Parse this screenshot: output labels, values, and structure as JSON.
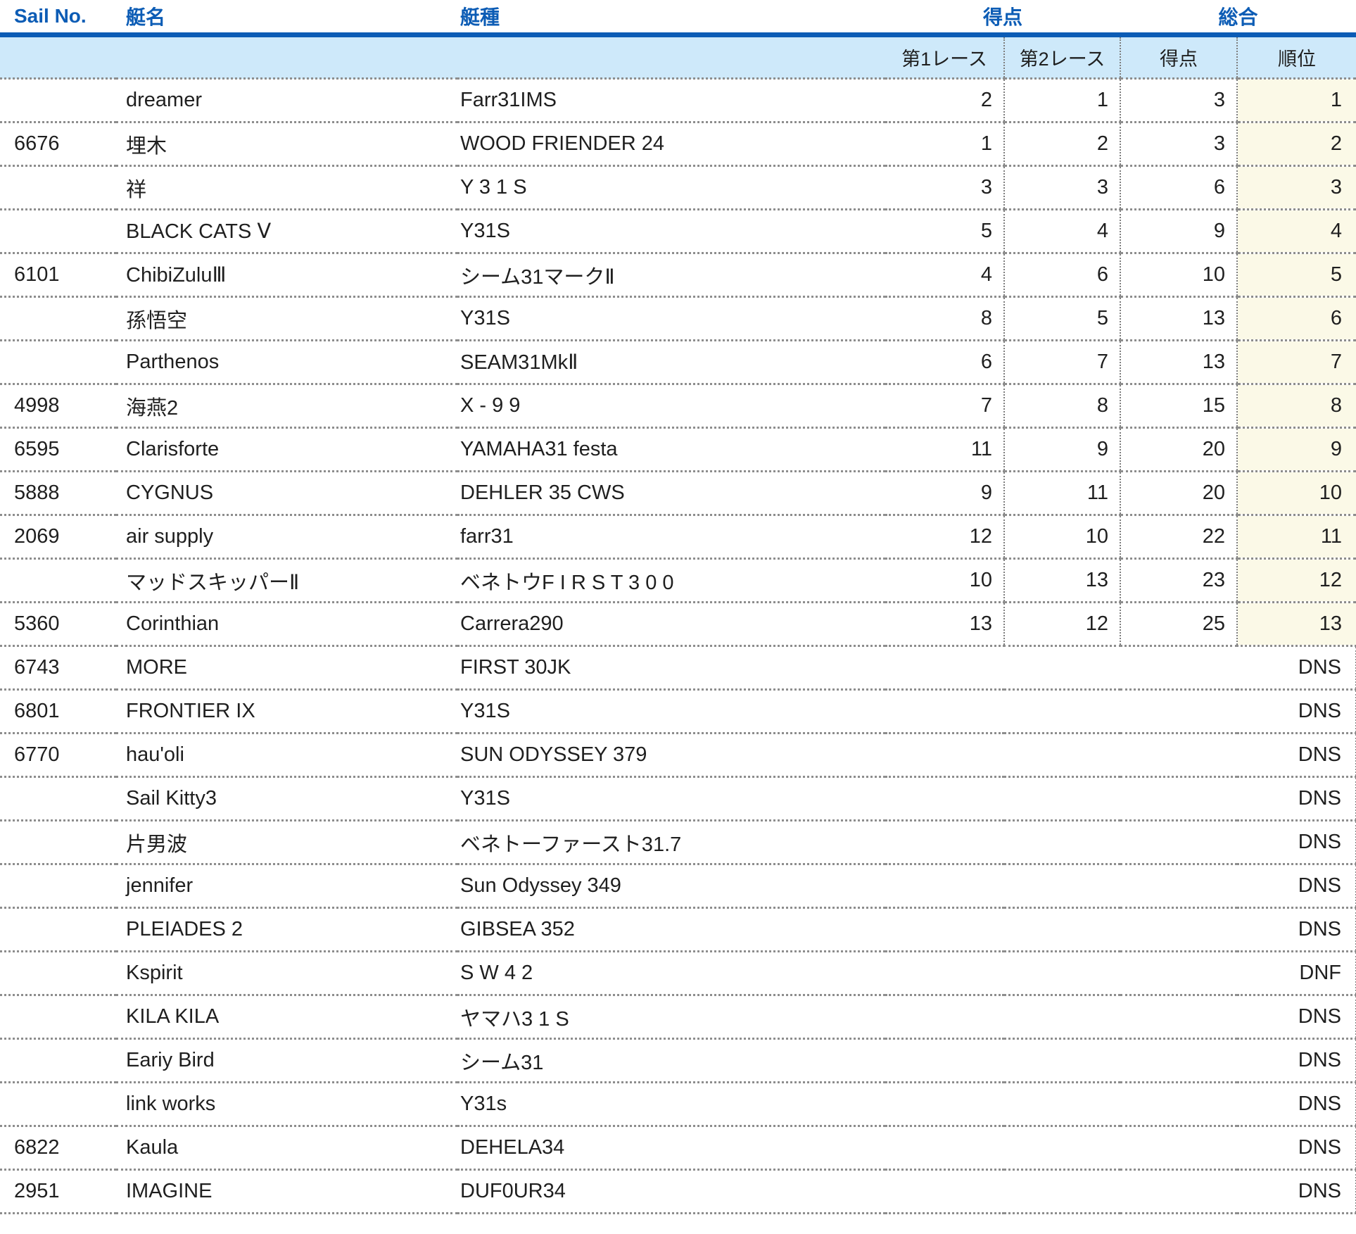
{
  "table": {
    "headers": {
      "sail_no": "Sail No.",
      "boat_name": "艇名",
      "boat_type": "艇種",
      "points_group": "得点",
      "overall_group": "総合",
      "race1": "第1レース",
      "race2": "第2レース",
      "points": "得点",
      "rank": "順位"
    },
    "rows": [
      {
        "sail": "",
        "name": "dreamer",
        "type": "Farr31IMS",
        "race1": "2",
        "race2": "1",
        "points": "3",
        "rank": "1"
      },
      {
        "sail": "6676",
        "name": "埋木",
        "type": "WOOD FRIENDER 24",
        "race1": "1",
        "race2": "2",
        "points": "3",
        "rank": "2"
      },
      {
        "sail": "",
        "name": "祥",
        "type": "Y 3 1 S",
        "race1": "3",
        "race2": "3",
        "points": "6",
        "rank": "3"
      },
      {
        "sail": "",
        "name": "BLACK CATS Ⅴ",
        "type": "Y31S",
        "race1": "5",
        "race2": "4",
        "points": "9",
        "rank": "4"
      },
      {
        "sail": "6101",
        "name": "ChibiZuluⅢ",
        "type": "シーム31マークⅡ",
        "race1": "4",
        "race2": "6",
        "points": "10",
        "rank": "5"
      },
      {
        "sail": "",
        "name": "孫悟空",
        "type": "Y31S",
        "race1": "8",
        "race2": "5",
        "points": "13",
        "rank": "6"
      },
      {
        "sail": "",
        "name": "Parthenos",
        "type": "SEAM31MkⅡ",
        "race1": "6",
        "race2": "7",
        "points": "13",
        "rank": "7"
      },
      {
        "sail": "4998",
        "name": "海燕2",
        "type": "X - 9 9",
        "race1": "7",
        "race2": "8",
        "points": "15",
        "rank": "8"
      },
      {
        "sail": "6595",
        "name": "Clarisforte",
        "type": "YAMAHA31 festa",
        "race1": "11",
        "race2": "9",
        "points": "20",
        "rank": "9"
      },
      {
        "sail": "5888",
        "name": "CYGNUS",
        "type": "DEHLER 35 CWS",
        "race1": "9",
        "race2": "11",
        "points": "20",
        "rank": "10"
      },
      {
        "sail": "2069",
        "name": "air supply",
        "type": "farr31",
        "race1": "12",
        "race2": "10",
        "points": "22",
        "rank": "11"
      },
      {
        "sail": "",
        "name": "マッドスキッパーⅡ",
        "type": "ベネトウF I R S T 3 0 0",
        "race1": "10",
        "race2": "13",
        "points": "23",
        "rank": "12"
      },
      {
        "sail": "5360",
        "name": "Corinthian",
        "type": "Carrera290",
        "race1": "13",
        "race2": "12",
        "points": "25",
        "rank": "13"
      },
      {
        "sail": "6743",
        "name": "MORE",
        "type": "FIRST 30JK",
        "status": "DNS"
      },
      {
        "sail": "6801",
        "name": "FRONTIER IX",
        "type": "Y31S",
        "status": "DNS"
      },
      {
        "sail": "6770",
        "name": "hau'oli",
        "type": "SUN ODYSSEY 379",
        "status": "DNS"
      },
      {
        "sail": "",
        "name": "Sail Kitty3",
        "type": "Y31S",
        "status": "DNS"
      },
      {
        "sail": "",
        "name": "片男波",
        "type": "ベネトーファースト31.7",
        "status": "DNS"
      },
      {
        "sail": "",
        "name": "jennifer",
        "type": "Sun Odyssey 349",
        "status": "DNS"
      },
      {
        "sail": "",
        "name": "PLEIADES 2",
        "type": "GIBSEA 352",
        "status": "DNS"
      },
      {
        "sail": "",
        "name": "Kspirit",
        "type": "S W 4 2",
        "status": "DNF"
      },
      {
        "sail": "",
        "name": "KILA KILA",
        "type": "ヤマハ3 1 S",
        "status": "DNS"
      },
      {
        "sail": "",
        "name": "Eariy Bird",
        "type": "シーム31",
        "status": "DNS"
      },
      {
        "sail": "",
        "name": "link works",
        "type": "Y31s",
        "status": "DNS"
      },
      {
        "sail": "6822",
        "name": "Kaula",
        "type": "DEHELA34",
        "status": "DNS"
      },
      {
        "sail": "2951",
        "name": "IMAGINE",
        "type": "DUF0UR34",
        "status": "DNS"
      }
    ]
  },
  "colors": {
    "accent_blue": "#0c5cb5",
    "subheader_bg": "#cee9fa",
    "rank_bg": "#fbf9e7",
    "grid_dots": "#8d8d8d"
  }
}
